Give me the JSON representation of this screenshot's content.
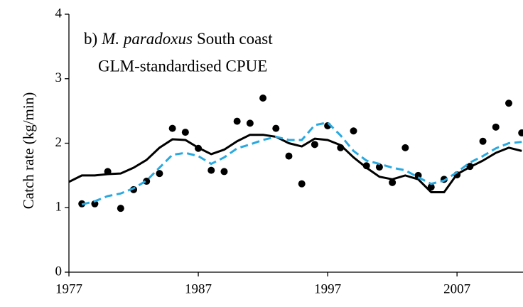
{
  "chart_data": {
    "type": "line",
    "panel_label": "b)",
    "species": "M. paradoxus",
    "region": "South coast",
    "subtitle": "GLM-standardised CPUE",
    "y_label": "Catch rate (kg/min)",
    "xlim": [
      1977,
      2012.1
    ],
    "xticks": [
      1977,
      1987,
      1997,
      2007
    ],
    "ylim": [
      0,
      4
    ],
    "yticks": [
      0,
      1,
      2,
      3,
      4
    ],
    "grid": false,
    "series": [
      {
        "mode": "markers",
        "color": "#000000",
        "x": [
          1978,
          1979,
          1980,
          1981,
          1982,
          1983,
          1984,
          1985,
          1986,
          1987,
          1988,
          1989,
          1990,
          1991,
          1992,
          1993,
          1994,
          1995,
          1996,
          1997,
          1998,
          1999,
          2000,
          2001,
          2002,
          2003,
          2004,
          2005,
          2006,
          2007,
          2008,
          2009,
          2010,
          2011,
          2012
        ],
        "values": [
          1.06,
          1.06,
          1.56,
          0.99,
          1.28,
          1.41,
          1.53,
          2.23,
          2.17,
          1.92,
          1.58,
          1.56,
          2.34,
          2.31,
          2.7,
          2.23,
          1.8,
          1.37,
          1.98,
          2.27,
          1.93,
          2.19,
          1.65,
          1.63,
          1.39,
          1.93,
          1.5,
          1.32,
          1.44,
          1.51,
          1.64,
          2.03,
          2.25,
          2.62,
          2.16
        ]
      },
      {
        "mode": "line",
        "dashed": false,
        "color": "#000000",
        "x": [
          1977,
          1978,
          1979,
          1980,
          1981,
          1982,
          1983,
          1984,
          1985,
          1986,
          1987,
          1988,
          1989,
          1990,
          1991,
          1992,
          1993,
          1994,
          1995,
          1996,
          1997,
          1998,
          1999,
          2000,
          2001,
          2002,
          2003,
          2004,
          2005,
          2006,
          2007,
          2008,
          2009,
          2010,
          2011,
          2012
        ],
        "values": [
          1.4,
          1.5,
          1.5,
          1.52,
          1.53,
          1.62,
          1.74,
          1.93,
          2.06,
          2.05,
          1.93,
          1.83,
          1.9,
          2.03,
          2.13,
          2.13,
          2.1,
          2.0,
          1.95,
          2.07,
          2.05,
          1.97,
          1.78,
          1.62,
          1.48,
          1.44,
          1.5,
          1.44,
          1.24,
          1.24,
          1.52,
          1.63,
          1.73,
          1.85,
          1.93,
          1.88
        ]
      },
      {
        "mode": "line",
        "dashed": true,
        "color": "#29a9e0",
        "x": [
          1978,
          1979,
          1980,
          1981,
          1982,
          1983,
          1984,
          1985,
          1986,
          1987,
          1988,
          1989,
          1990,
          1991,
          1992,
          1993,
          1994,
          1995,
          1996,
          1997,
          1998,
          1999,
          2000,
          2001,
          2002,
          2003,
          2004,
          2005,
          2006,
          2007,
          2008,
          2009,
          2010,
          2011,
          2012
        ],
        "values": [
          1.05,
          1.1,
          1.18,
          1.22,
          1.3,
          1.42,
          1.62,
          1.82,
          1.85,
          1.8,
          1.68,
          1.78,
          1.92,
          1.98,
          2.05,
          2.1,
          2.05,
          2.05,
          2.28,
          2.32,
          2.12,
          1.88,
          1.73,
          1.68,
          1.62,
          1.58,
          1.47,
          1.37,
          1.42,
          1.55,
          1.7,
          1.8,
          1.92,
          2.0,
          2.02
        ]
      }
    ]
  }
}
